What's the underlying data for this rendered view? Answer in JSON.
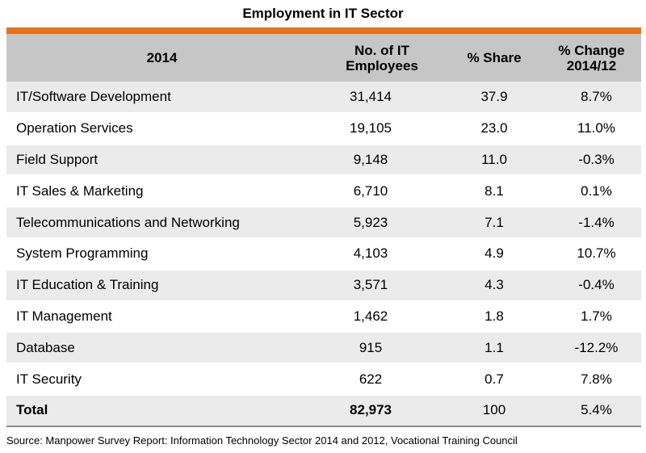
{
  "title": "Employment in IT Sector",
  "accent_color": "#e8711c",
  "header_color": "#c6c6c6",
  "headers": [
    "2014",
    "No. of IT\nEmployees",
    "% Share",
    "% Change\n2014/12"
  ],
  "header_lines": [
    [
      "2014"
    ],
    [
      "No. of IT",
      "Employees"
    ],
    [
      "% Share"
    ],
    [
      "% Change",
      "2014/12"
    ]
  ],
  "chart_data": {
    "type": "table",
    "title": "Employment in IT Sector",
    "columns": [
      "2014",
      "No. of IT Employees",
      "% Share",
      "% Change 2014/12"
    ],
    "rows": [
      {
        "category": "IT/Software Development",
        "employees": "31,414",
        "share": "37.9",
        "change": "8.7%"
      },
      {
        "category": "Operation Services",
        "employees": "19,105",
        "share": "23.0",
        "change": "11.0%"
      },
      {
        "category": "Field Support",
        "employees": "9,148",
        "share": "11.0",
        "change": "-0.3%"
      },
      {
        "category": "IT Sales & Marketing",
        "employees": "6,710",
        "share": "8.1",
        "change": "0.1%"
      },
      {
        "category": "Telecommunications and Networking",
        "employees": "5,923",
        "share": "7.1",
        "change": "-1.4%"
      },
      {
        "category": "System Programming",
        "employees": "4,103",
        "share": "4.9",
        "change": "10.7%"
      },
      {
        "category": "IT Education & Training",
        "employees": "3,571",
        "share": "4.3",
        "change": "-0.4%"
      },
      {
        "category": "IT Management",
        "employees": "1,462",
        "share": "1.8",
        "change": "1.7%"
      },
      {
        "category": "Database",
        "employees": "915",
        "share": "1.1",
        "change": "-12.2%"
      },
      {
        "category": "IT Security",
        "employees": "622",
        "share": "0.7",
        "change": "7.8%"
      }
    ],
    "total": {
      "category": "Total",
      "employees": "82,973",
      "share": "100",
      "change": "5.4%"
    }
  },
  "source": "Source: Manpower Survey Report: Information Technology Sector 2014 and 2012, Vocational Training Council"
}
